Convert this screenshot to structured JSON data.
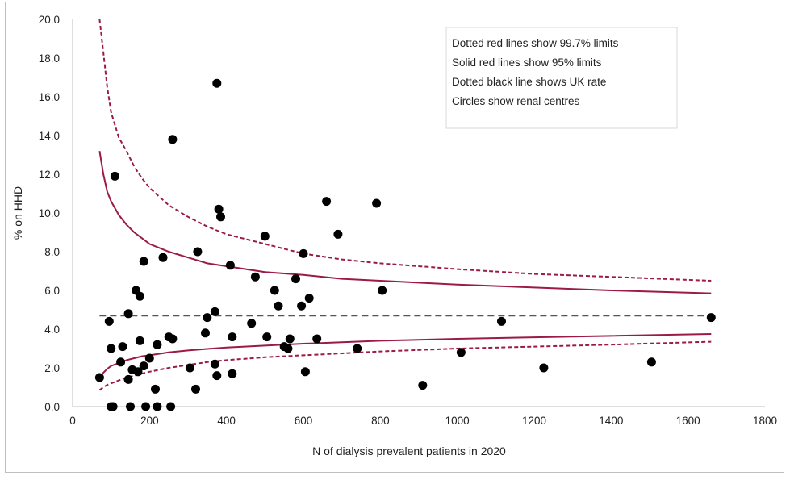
{
  "chart_data": {
    "type": "scatter",
    "title": "",
    "xlabel": "N of dialysis prevalent patients in 2020",
    "ylabel": "% on HHD",
    "xlim": [
      0,
      1800
    ],
    "ylim": [
      0,
      20
    ],
    "x_ticks": [
      "0",
      "200",
      "400",
      "600",
      "800",
      "1000",
      "1200",
      "1400",
      "1600",
      "1800"
    ],
    "y_ticks": [
      "0.0",
      "2.0",
      "4.0",
      "6.0",
      "8.0",
      "10.0",
      "12.0",
      "14.0",
      "16.0",
      "18.0",
      "20.0"
    ],
    "grid": false,
    "legend_position": "top-right",
    "legend_lines": [
      "Dotted red lines show 99.7% limits",
      "Solid red lines show 95% limits",
      "Dotted black line shows UK rate",
      "Circles show renal centres"
    ],
    "uk_rate": 4.7,
    "colors": {
      "limits": "#9b1b45",
      "uk_rate": "#555555",
      "points": "#000000"
    },
    "limit_curve_x": [
      70,
      80,
      90,
      100,
      120,
      140,
      160,
      180,
      200,
      250,
      300,
      350,
      400,
      500,
      600,
      700,
      800,
      1000,
      1200,
      1400,
      1660
    ],
    "series": [
      {
        "style": "solid",
        "bound": "upper95",
        "x": [
          70,
          80,
          90,
          100,
          120,
          140,
          160,
          180,
          200,
          250,
          300,
          350,
          400,
          500,
          600,
          700,
          800,
          1000,
          1200,
          1400,
          1660
        ],
        "y": [
          13.2,
          12.0,
          11.1,
          10.6,
          9.9,
          9.4,
          9.0,
          8.7,
          8.4,
          8.0,
          7.7,
          7.4,
          7.25,
          6.95,
          6.8,
          6.6,
          6.5,
          6.3,
          6.15,
          6.0,
          5.85
        ]
      },
      {
        "style": "solid",
        "bound": "lower95",
        "x": [
          70,
          80,
          90,
          100,
          120,
          140,
          160,
          180,
          200,
          250,
          300,
          350,
          400,
          500,
          600,
          700,
          800,
          1000,
          1200,
          1400,
          1660
        ],
        "y": [
          1.45,
          1.75,
          1.95,
          2.1,
          2.25,
          2.4,
          2.5,
          2.6,
          2.65,
          2.8,
          2.9,
          2.98,
          3.05,
          3.15,
          3.25,
          3.32,
          3.4,
          3.5,
          3.58,
          3.65,
          3.75
        ]
      },
      {
        "style": "dotted",
        "bound": "upper997",
        "x": [
          70,
          80,
          90,
          100,
          120,
          140,
          160,
          180,
          200,
          250,
          300,
          350,
          400,
          500,
          600,
          700,
          800,
          1000,
          1200,
          1400,
          1660
        ],
        "y": [
          20.0,
          18.3,
          16.5,
          15.2,
          13.9,
          13.2,
          12.4,
          11.8,
          11.3,
          10.4,
          9.8,
          9.3,
          8.9,
          8.4,
          7.9,
          7.6,
          7.4,
          7.1,
          6.85,
          6.7,
          6.5
        ]
      },
      {
        "style": "dotted",
        "bound": "lower997",
        "x": [
          70,
          80,
          90,
          100,
          120,
          140,
          160,
          180,
          200,
          250,
          300,
          350,
          400,
          500,
          600,
          700,
          800,
          1000,
          1200,
          1400,
          1660
        ],
        "y": [
          0.85,
          1.0,
          1.12,
          1.2,
          1.35,
          1.5,
          1.6,
          1.7,
          1.8,
          2.0,
          2.15,
          2.3,
          2.4,
          2.55,
          2.65,
          2.75,
          2.85,
          3.0,
          3.1,
          3.2,
          3.35
        ]
      }
    ],
    "points": [
      [
        70,
        1.5
      ],
      [
        95,
        4.4
      ],
      [
        100,
        3.0
      ],
      [
        100,
        0.0
      ],
      [
        105,
        0.0
      ],
      [
        110,
        11.9
      ],
      [
        125,
        2.3
      ],
      [
        130,
        3.1
      ],
      [
        145,
        4.8
      ],
      [
        145,
        1.4
      ],
      [
        150,
        0.0
      ],
      [
        155,
        1.9
      ],
      [
        165,
        6.0
      ],
      [
        170,
        1.8
      ],
      [
        175,
        5.7
      ],
      [
        175,
        3.4
      ],
      [
        185,
        7.5
      ],
      [
        185,
        2.1
      ],
      [
        190,
        0.0
      ],
      [
        200,
        2.5
      ],
      [
        215,
        0.9
      ],
      [
        220,
        3.2
      ],
      [
        220,
        0.0
      ],
      [
        235,
        7.7
      ],
      [
        250,
        3.6
      ],
      [
        255,
        0.0
      ],
      [
        260,
        13.8
      ],
      [
        260,
        3.5
      ],
      [
        305,
        2.0
      ],
      [
        320,
        0.9
      ],
      [
        325,
        8.0
      ],
      [
        345,
        3.8
      ],
      [
        350,
        4.6
      ],
      [
        370,
        4.9
      ],
      [
        370,
        2.2
      ],
      [
        375,
        1.6
      ],
      [
        375,
        16.7
      ],
      [
        380,
        10.2
      ],
      [
        385,
        9.8
      ],
      [
        410,
        7.3
      ],
      [
        415,
        3.6
      ],
      [
        415,
        1.7
      ],
      [
        465,
        4.3
      ],
      [
        475,
        6.7
      ],
      [
        500,
        8.8
      ],
      [
        505,
        3.6
      ],
      [
        525,
        6.0
      ],
      [
        535,
        5.2
      ],
      [
        550,
        3.1
      ],
      [
        560,
        3.0
      ],
      [
        565,
        3.5
      ],
      [
        580,
        6.6
      ],
      [
        595,
        5.2
      ],
      [
        600,
        7.9
      ],
      [
        605,
        1.8
      ],
      [
        615,
        5.6
      ],
      [
        635,
        3.5
      ],
      [
        660,
        10.6
      ],
      [
        690,
        8.9
      ],
      [
        740,
        3.0
      ],
      [
        790,
        10.5
      ],
      [
        805,
        6.0
      ],
      [
        910,
        1.1
      ],
      [
        1010,
        2.8
      ],
      [
        1115,
        4.4
      ],
      [
        1225,
        2.0
      ],
      [
        1505,
        2.3
      ],
      [
        1660,
        4.6
      ]
    ]
  }
}
